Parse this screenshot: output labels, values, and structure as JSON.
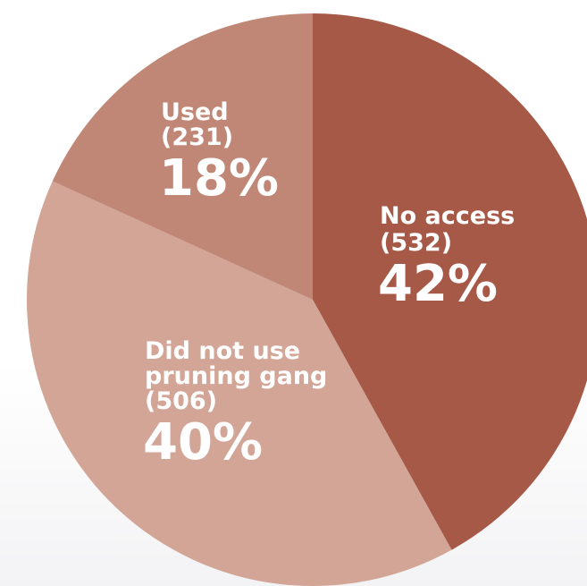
{
  "chart_data": {
    "type": "pie",
    "slices": [
      {
        "name_lines": [
          "No access"
        ],
        "count": "(532)",
        "value": 532,
        "percent_label": "42%",
        "color": "#a65947"
      },
      {
        "name_lines": [
          "Did not use",
          "pruning gang"
        ],
        "count": "(506)",
        "value": 506,
        "percent_label": "40%",
        "color": "#d2a596"
      },
      {
        "name_lines": [
          "Used"
        ],
        "count": "(231)",
        "value": 231,
        "percent_label": "18%",
        "color": "#c08776"
      }
    ],
    "start_angle_deg": 0,
    "direction": "clockwise"
  }
}
